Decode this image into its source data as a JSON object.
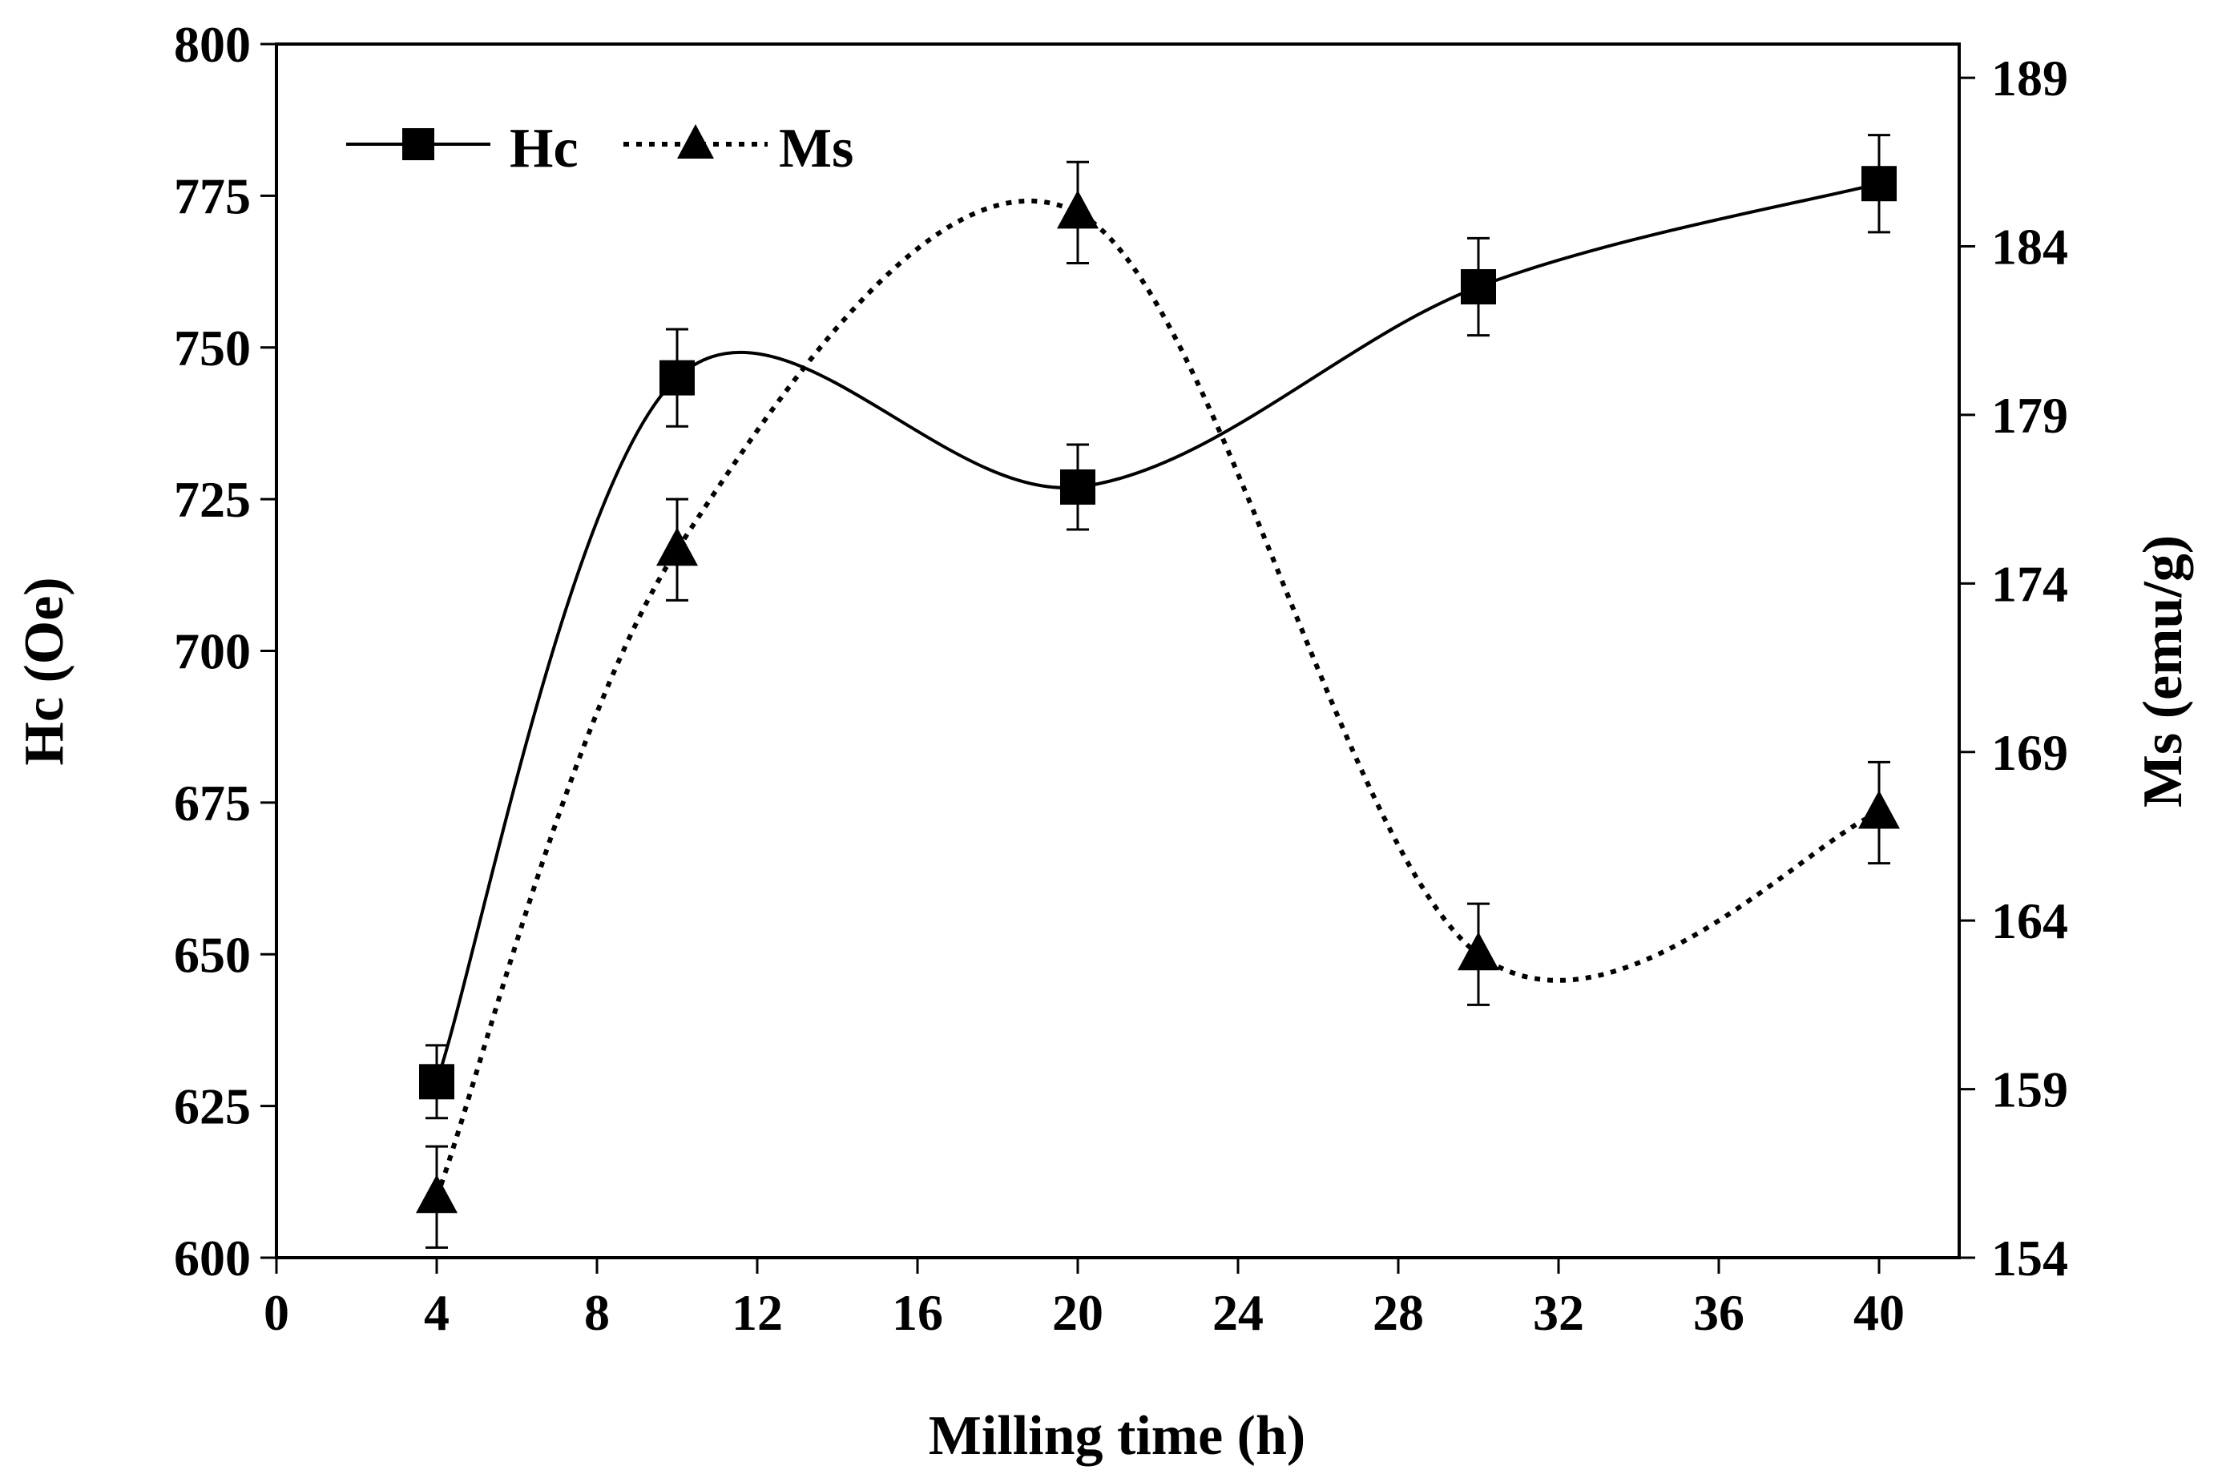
{
  "chart_data": {
    "type": "line",
    "title": "",
    "xlabel": "Milling time (h)",
    "ylabel": "Hc (Oe)",
    "y2label": "Ms (emu/g)",
    "xlim": [
      0,
      42
    ],
    "ylim": [
      600,
      800
    ],
    "y2lim": [
      154,
      190
    ],
    "x_ticks": [
      0,
      4,
      8,
      12,
      16,
      20,
      24,
      28,
      32,
      36,
      40
    ],
    "y_ticks": [
      600,
      625,
      650,
      675,
      700,
      725,
      750,
      775,
      800
    ],
    "y2_ticks": [
      154,
      159,
      164,
      169,
      174,
      179,
      184,
      189
    ],
    "grid": false,
    "legend_position": "top-left",
    "series": [
      {
        "name": "Hc",
        "axis": "left",
        "line_style": "solid",
        "marker": "square",
        "x": [
          4,
          10,
          20,
          30,
          40
        ],
        "values": [
          629,
          745,
          727,
          760,
          777
        ],
        "error": [
          6,
          8,
          7,
          8,
          8
        ]
      },
      {
        "name": "Ms",
        "axis": "right",
        "line_style": "dotted",
        "marker": "triangle",
        "x": [
          4,
          10,
          20,
          30,
          40
        ],
        "values": [
          155.8,
          175.0,
          185.0,
          163.0,
          167.2
        ],
        "error": [
          1.5,
          1.5,
          1.5,
          1.5,
          1.5
        ]
      }
    ]
  }
}
